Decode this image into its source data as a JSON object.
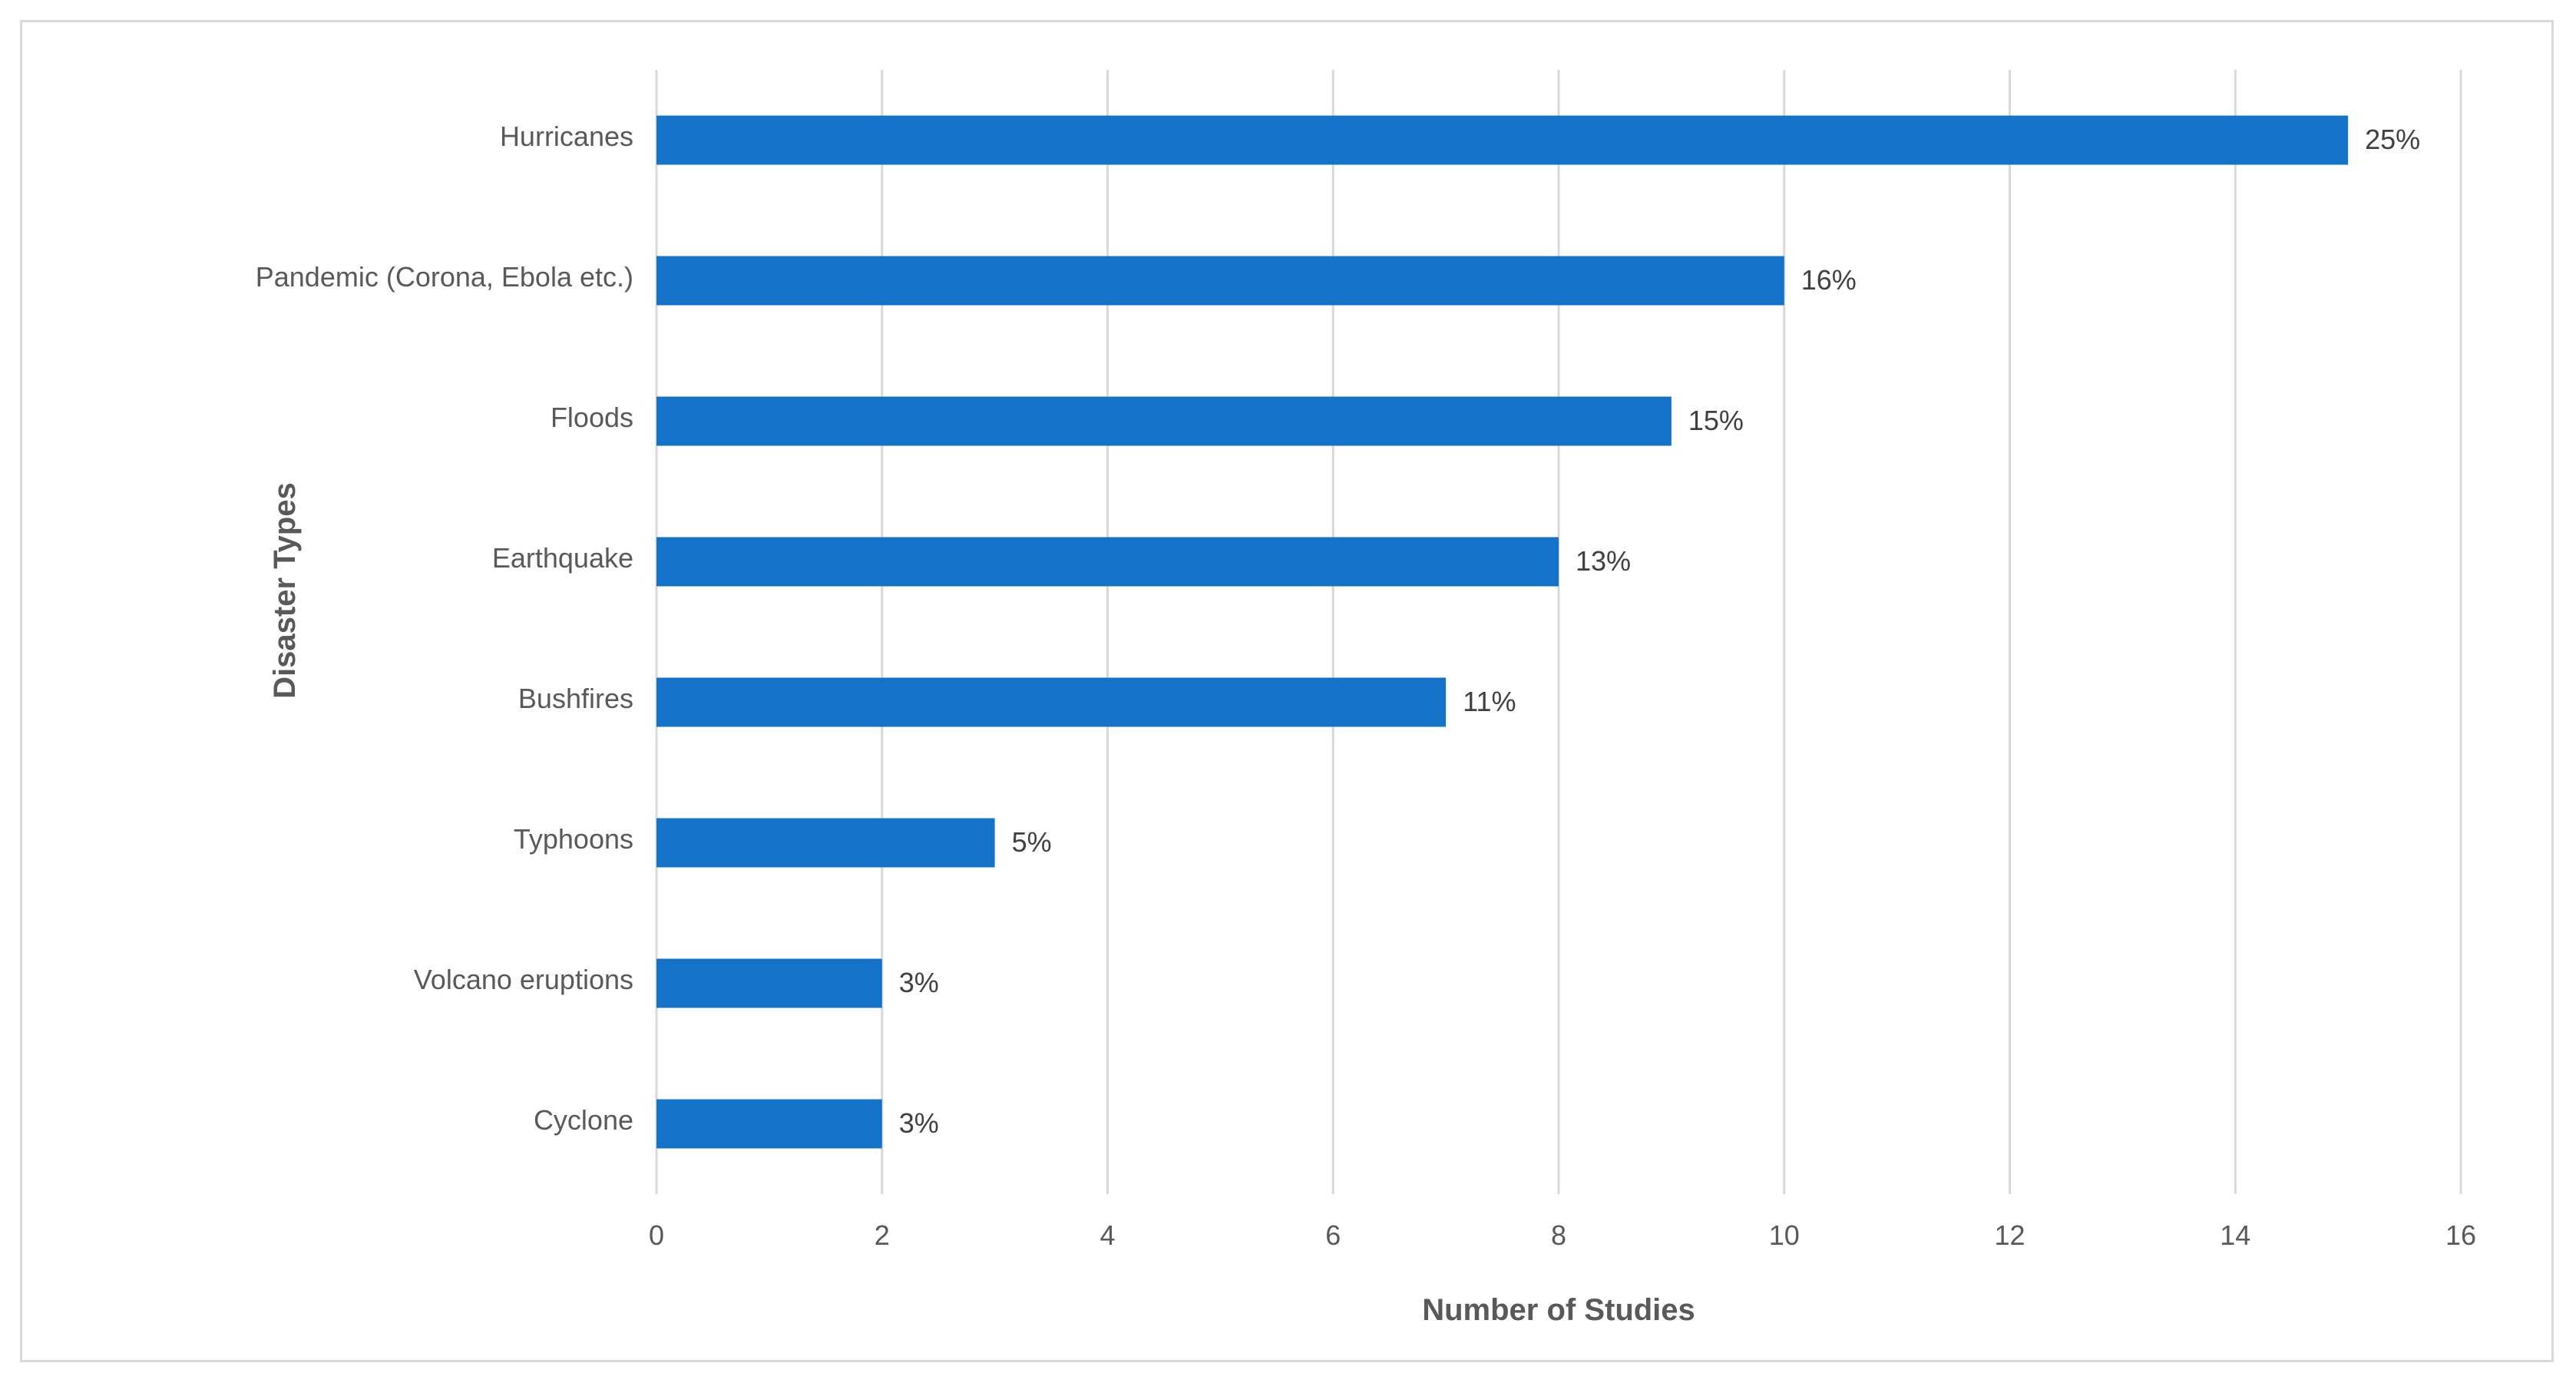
{
  "chart_data": {
    "type": "bar",
    "orientation": "horizontal",
    "categories": [
      "Hurricanes",
      "Pandemic (Corona, Ebola etc.)",
      "Floods",
      "Earthquake",
      "Bushfires",
      "Typhoons",
      "Volcano eruptions",
      "Cyclone"
    ],
    "values": [
      15,
      10,
      9,
      8,
      7,
      3,
      2,
      2
    ],
    "data_labels": [
      "25%",
      "16%",
      "15%",
      "13%",
      "11%",
      "5%",
      "3%",
      "3%"
    ],
    "title": "",
    "xlabel": "Number of Studies",
    "ylabel": "Disaster Types",
    "xlim": [
      0,
      16
    ],
    "xticks": [
      "0",
      "2",
      "4",
      "6",
      "8",
      "10",
      "12",
      "14",
      "16"
    ],
    "grid": "vertical",
    "bar_color": "#1473c9",
    "legend": "none"
  }
}
